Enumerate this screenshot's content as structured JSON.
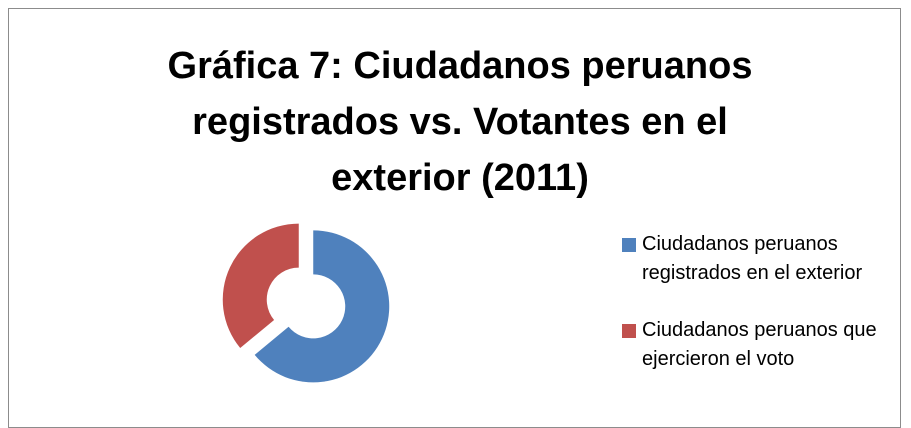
{
  "chart_data": {
    "type": "donut",
    "title": "Gráfica 7: Ciudadanos peruanos registrados vs. Votantes en el exterior (2011)",
    "categories": [
      "Ciudadanos peruanos registrados en el exterior",
      "Ciudadanos peruanos que ejercieron el voto"
    ],
    "values": [
      64,
      36
    ],
    "colors": [
      "#4f81bd",
      "#c0504d"
    ],
    "legend": "right"
  }
}
